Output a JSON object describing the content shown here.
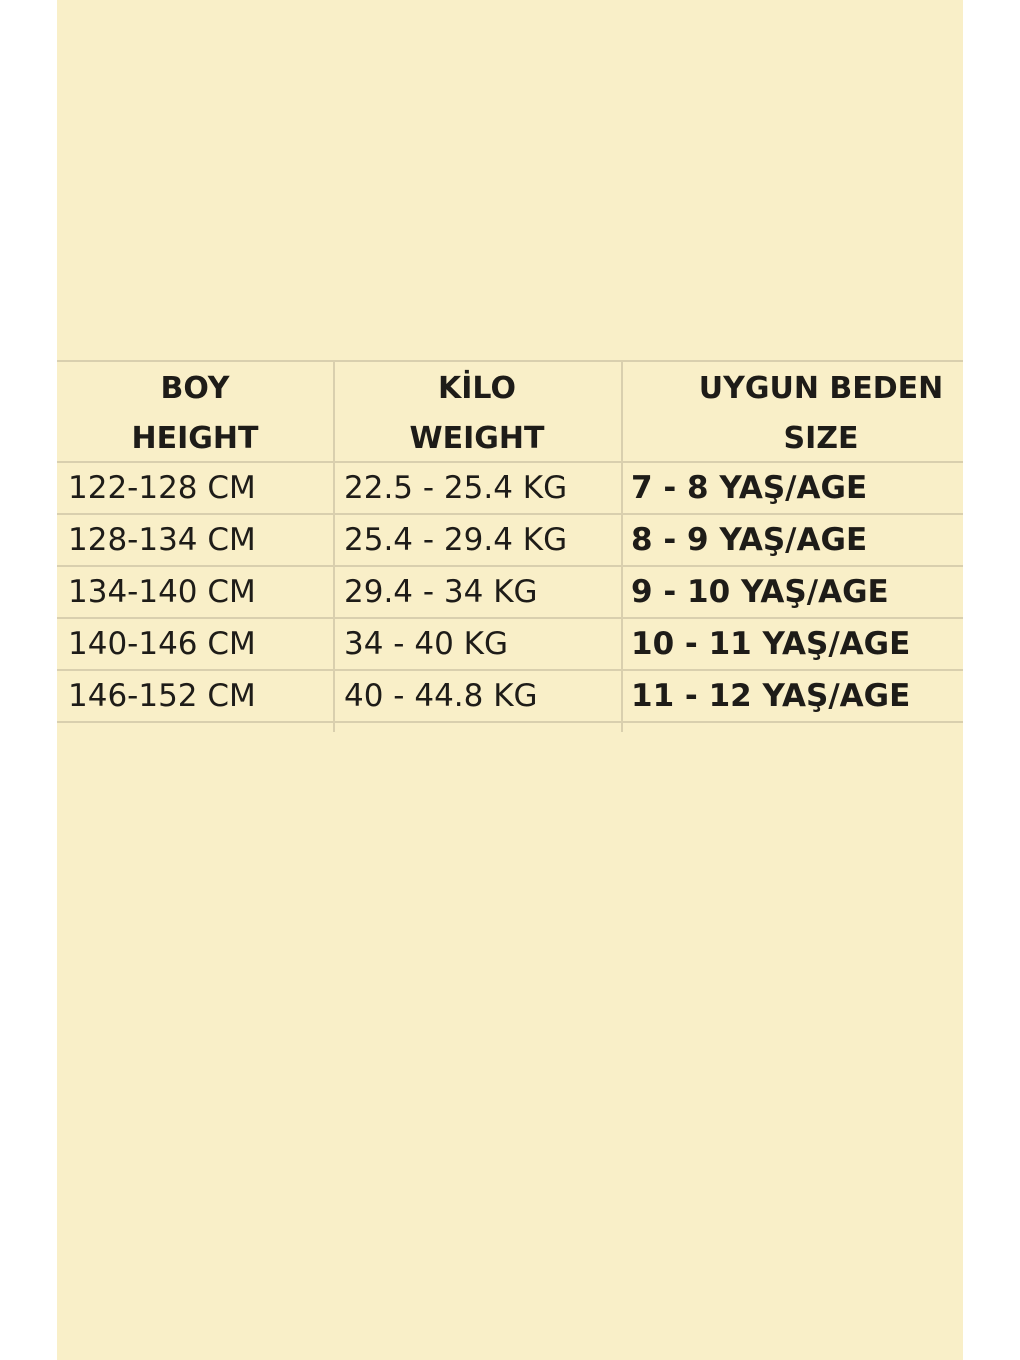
{
  "table": {
    "headers": [
      [
        "BOY",
        "HEIGHT"
      ],
      [
        "KİLO",
        "WEIGHT"
      ],
      [
        "UYGUN BEDEN",
        "SIZE"
      ]
    ],
    "rows": [
      [
        "122-128 CM",
        "22.5 - 25.4 KG",
        "7 - 8 YAŞ/AGE"
      ],
      [
        "128-134 CM",
        "25.4 - 29.4 KG",
        "8 - 9 YAŞ/AGE"
      ],
      [
        "134-140 CM",
        "29.4 - 34 KG",
        "9 - 10 YAŞ/AGE"
      ],
      [
        "140-146 CM",
        "34 - 40 KG",
        "10 - 11 YAŞ/AGE"
      ],
      [
        "146-152 CM",
        "40 - 44.8 KG",
        "11 - 12 YAŞ/AGE"
      ]
    ]
  }
}
